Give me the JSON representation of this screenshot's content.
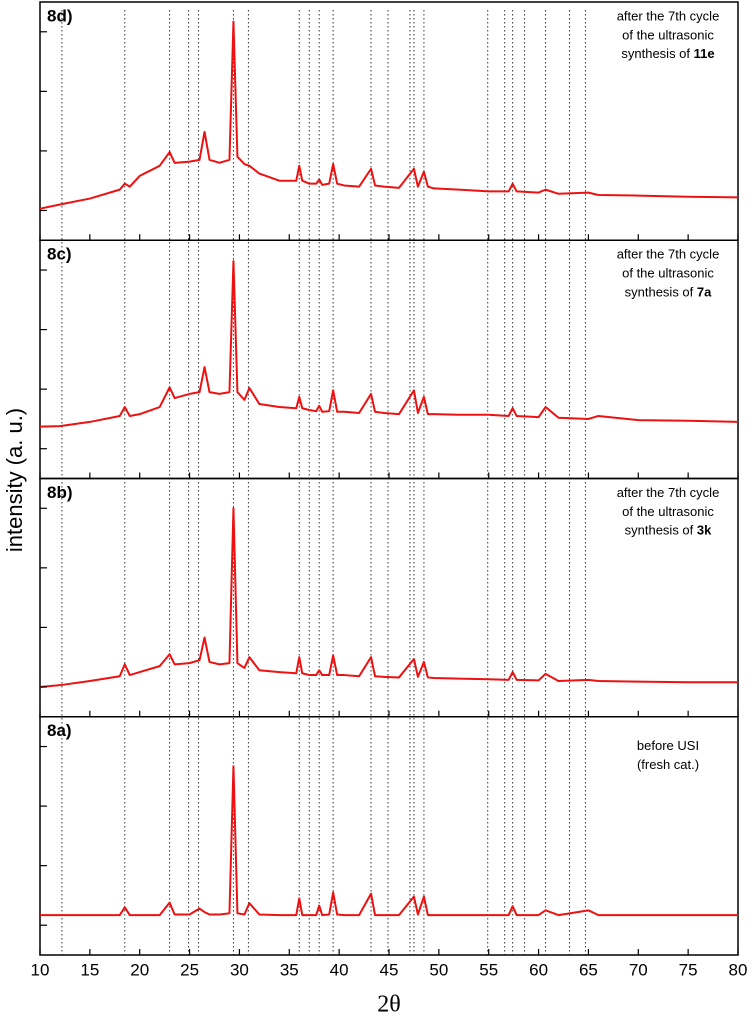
{
  "chart_data": {
    "type": "line",
    "xlabel": "2θ",
    "ylabel": "intensity (a. u.)",
    "color": "#ee1111",
    "xlim": [
      10,
      80
    ],
    "xticks": [
      10,
      15,
      20,
      25,
      30,
      35,
      40,
      45,
      50,
      55,
      60,
      65,
      70,
      75,
      80
    ],
    "reference_lines": [
      12.2,
      18.5,
      23.0,
      24.9,
      25.9,
      29.4,
      30.9,
      36.0,
      37.0,
      38.0,
      39.4,
      43.2,
      44.9,
      47.1,
      47.5,
      48.5,
      54.9,
      56.6,
      57.4,
      58.6,
      60.7,
      63.1,
      64.7
    ],
    "x": [
      10,
      12,
      15,
      18,
      18.5,
      19,
      20,
      22,
      23,
      23.5,
      25,
      26,
      26.5,
      27,
      28,
      29,
      29.4,
      29.8,
      30.5,
      31,
      32,
      34,
      35.7,
      36,
      36.3,
      37,
      37.7,
      38,
      38.3,
      39,
      39.4,
      39.8,
      40.5,
      42,
      43.2,
      43.6,
      44.5,
      46,
      47.5,
      47.9,
      48.5,
      48.9,
      49.5,
      52,
      55,
      57,
      57.4,
      57.8,
      60,
      60.7,
      62,
      65,
      66,
      70,
      75,
      80
    ],
    "panels": [
      {
        "label": "8d)",
        "note": [
          "after the 7th cycle",
          "of the ultrasonic",
          "synthesis of "
        ],
        "note_bold": "11e",
        "ylim": [
          0,
          4
        ],
        "yticks": [
          0.5,
          1.5,
          2.5,
          3.5
        ],
        "values": [
          0.53,
          0.6,
          0.7,
          0.85,
          0.95,
          0.9,
          1.08,
          1.25,
          1.48,
          1.3,
          1.32,
          1.35,
          1.82,
          1.35,
          1.3,
          1.35,
          3.67,
          1.4,
          1.28,
          1.25,
          1.12,
          1.0,
          1.0,
          1.25,
          1.0,
          0.95,
          0.95,
          1.02,
          0.93,
          0.95,
          1.28,
          0.95,
          0.92,
          0.9,
          1.2,
          0.92,
          0.9,
          0.88,
          1.2,
          0.9,
          1.15,
          0.9,
          0.87,
          0.85,
          0.82,
          0.82,
          0.95,
          0.82,
          0.8,
          0.85,
          0.78,
          0.8,
          0.76,
          0.75,
          0.73,
          0.72
        ]
      },
      {
        "label": "8c)",
        "note": [
          "after the 7th cycle",
          "of the ultrasonic",
          "synthesis of "
        ],
        "note_bold": "7a",
        "ylim": [
          0,
          4
        ],
        "yticks": [
          0.5,
          1.5,
          2.5,
          3.5
        ],
        "values": [
          0.87,
          0.88,
          0.95,
          1.05,
          1.2,
          1.05,
          1.08,
          1.2,
          1.53,
          1.35,
          1.42,
          1.45,
          1.87,
          1.45,
          1.42,
          1.45,
          3.65,
          1.45,
          1.32,
          1.52,
          1.25,
          1.2,
          1.18,
          1.37,
          1.18,
          1.15,
          1.13,
          1.22,
          1.12,
          1.13,
          1.48,
          1.12,
          1.12,
          1.1,
          1.42,
          1.12,
          1.1,
          1.08,
          1.48,
          1.1,
          1.37,
          1.08,
          1.08,
          1.07,
          1.07,
          1.05,
          1.18,
          1.05,
          1.03,
          1.2,
          1.02,
          1.0,
          1.05,
          0.98,
          0.97,
          0.95
        ]
      },
      {
        "label": "8b)",
        "note": [
          "after the 7th cycle",
          "of the ultrasonic",
          "synthesis of "
        ],
        "note_bold": "3k",
        "ylim": [
          0,
          4
        ],
        "yticks": [
          0.5,
          1.5,
          2.5,
          3.5
        ],
        "values": [
          0.5,
          0.53,
          0.6,
          0.68,
          0.88,
          0.7,
          0.75,
          0.85,
          1.05,
          0.88,
          0.9,
          0.95,
          1.33,
          0.92,
          0.88,
          0.9,
          3.5,
          0.9,
          0.82,
          1.0,
          0.78,
          0.75,
          0.73,
          1.0,
          0.73,
          0.7,
          0.7,
          0.78,
          0.7,
          0.7,
          1.03,
          0.7,
          0.7,
          0.68,
          1.0,
          0.68,
          0.67,
          0.66,
          0.97,
          0.67,
          0.92,
          0.66,
          0.65,
          0.64,
          0.63,
          0.62,
          0.75,
          0.62,
          0.61,
          0.72,
          0.6,
          0.62,
          0.6,
          0.59,
          0.58,
          0.58
        ]
      },
      {
        "label": "8a)",
        "note": [
          "before USI",
          "(fresh cat.)"
        ],
        "ylim": [
          0,
          4
        ],
        "yticks": [
          0.5,
          1.5,
          2.5,
          3.5
        ],
        "values": [
          0.67,
          0.67,
          0.67,
          0.67,
          0.8,
          0.67,
          0.67,
          0.67,
          0.88,
          0.68,
          0.68,
          0.78,
          0.72,
          0.68,
          0.68,
          0.7,
          3.17,
          0.7,
          0.68,
          0.87,
          0.68,
          0.67,
          0.67,
          0.95,
          0.67,
          0.67,
          0.67,
          0.83,
          0.67,
          0.68,
          1.05,
          0.68,
          0.67,
          0.67,
          1.03,
          0.67,
          0.67,
          0.67,
          0.98,
          0.68,
          0.98,
          0.67,
          0.67,
          0.67,
          0.67,
          0.67,
          0.82,
          0.67,
          0.67,
          0.75,
          0.67,
          0.75,
          0.67,
          0.67,
          0.67,
          0.67
        ]
      }
    ]
  }
}
